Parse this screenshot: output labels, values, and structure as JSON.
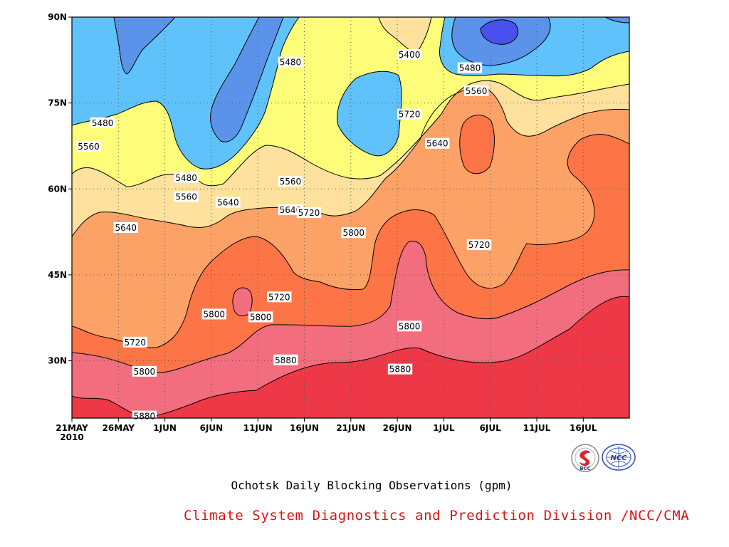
{
  "chart_data": {
    "type": "heatmap",
    "title": "Ochotsk Daily Blocking Observations (gpm)",
    "credit": "Climate System Diagnostics and Prediction Division /NCC/CMA",
    "xlabel": "",
    "ylabel": "",
    "x_ticks": [
      "21MAY",
      "26MAY",
      "1JUN",
      "6JUN",
      "11JUN",
      "16JUN",
      "21JUN",
      "26JUN",
      "1JUL",
      "6JUL",
      "11JUL",
      "16JUL"
    ],
    "x_start_year": "2010",
    "y_ticks": [
      "30N",
      "45N",
      "60N",
      "75N",
      "90N"
    ],
    "ylim": [
      20,
      90
    ],
    "grid": "dotted",
    "contour_levels": [
      5400,
      5480,
      5560,
      5640,
      5720,
      5800,
      5880
    ],
    "fill_colors": {
      "below_5400": "#4a50f0",
      "5400_5480": "#5b93ea",
      "5480_5560": "#5fc2fb",
      "5560_5640": "#fdfd7a",
      "5640_5720": "#fde19c",
      "5720_5800": "#fda266",
      "5800_5880": "#fd7547",
      "5880_5960": "#f26d7d",
      "above_5960": "#ef3847"
    },
    "contour_labels": [
      {
        "value": "5400",
        "day": 36.3,
        "lat": 83.4
      },
      {
        "value": "5480",
        "day": 3.3,
        "lat": 71.5
      },
      {
        "value": "5480",
        "day": 23.5,
        "lat": 82.1
      },
      {
        "value": "5480",
        "day": 12.3,
        "lat": 61.9
      },
      {
        "value": "5480",
        "day": 42.8,
        "lat": 81.1
      },
      {
        "value": "5560",
        "day": 1.8,
        "lat": 67.4
      },
      {
        "value": "5560",
        "day": 12.3,
        "lat": 58.6
      },
      {
        "value": "5560",
        "day": 23.5,
        "lat": 61.3
      },
      {
        "value": "5560",
        "day": 43.5,
        "lat": 77.1
      },
      {
        "value": "5640",
        "day": 5.8,
        "lat": 53.2
      },
      {
        "value": "5640",
        "day": 16.8,
        "lat": 57.6
      },
      {
        "value": "5640",
        "day": 23.5,
        "lat": 56.3
      },
      {
        "value": "5640",
        "day": 39.3,
        "lat": 67.9
      },
      {
        "value": "5720",
        "day": 6.8,
        "lat": 33.2
      },
      {
        "value": "5720",
        "day": 25.5,
        "lat": 55.8
      },
      {
        "value": "5720",
        "day": 22.3,
        "lat": 41.1
      },
      {
        "value": "5720",
        "day": 36.3,
        "lat": 73.0
      },
      {
        "value": "5720",
        "day": 43.8,
        "lat": 50.2
      },
      {
        "value": "5800",
        "day": 7.8,
        "lat": 28.1
      },
      {
        "value": "5800",
        "day": 15.3,
        "lat": 38.1
      },
      {
        "value": "5800",
        "day": 20.3,
        "lat": 37.6
      },
      {
        "value": "5800",
        "day": 30.3,
        "lat": 52.3
      },
      {
        "value": "5800",
        "day": 36.3,
        "lat": 36.0
      },
      {
        "value": "5880",
        "day": 23.0,
        "lat": 30.1
      },
      {
        "value": "5880",
        "day": 35.3,
        "lat": 28.5
      },
      {
        "value": "5880",
        "day": 7.8,
        "lat": 20.3
      }
    ]
  },
  "logos": [
    {
      "name": "bcc-logo",
      "text": "BCC"
    },
    {
      "name": "ncc-logo",
      "text": "NCC"
    }
  ]
}
